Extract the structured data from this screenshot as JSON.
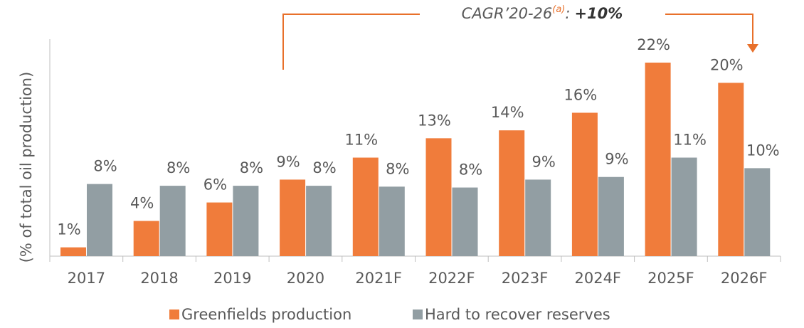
{
  "chart_data": {
    "type": "bar",
    "y_label": "(% of total oil production)",
    "categories": [
      "2017",
      "2018",
      "2019",
      "2020",
      "2021F",
      "2022F",
      "2023F",
      "2024F",
      "2025F",
      "2026F"
    ],
    "series": [
      {
        "name": "Greenfields production",
        "color": "#f07c3b",
        "values": [
          1.0,
          4.0,
          6.1,
          8.7,
          11.2,
          13.4,
          14.3,
          16.3,
          22.0,
          19.7
        ],
        "value_labels": [
          "1%",
          "4%",
          "6%",
          "9%",
          "11%",
          "13%",
          "14%",
          "16%",
          "22%",
          "20%"
        ]
      },
      {
        "name": "Hard to recover reserves",
        "color": "#929ea3",
        "values": [
          8.2,
          8.0,
          8.0,
          8.0,
          7.9,
          7.8,
          8.7,
          9.0,
          11.2,
          10.0
        ],
        "value_labels": [
          "8%",
          "8%",
          "8%",
          "8%",
          "8%",
          "8%",
          "9%",
          "9%",
          "11%",
          "10%"
        ]
      }
    ],
    "ylim": [
      0,
      22
    ],
    "annotation": {
      "text": "CAGR’20-26",
      "superscript": "(a)",
      "separator": ":",
      "value": "+10%",
      "color": "#e8702a"
    }
  }
}
